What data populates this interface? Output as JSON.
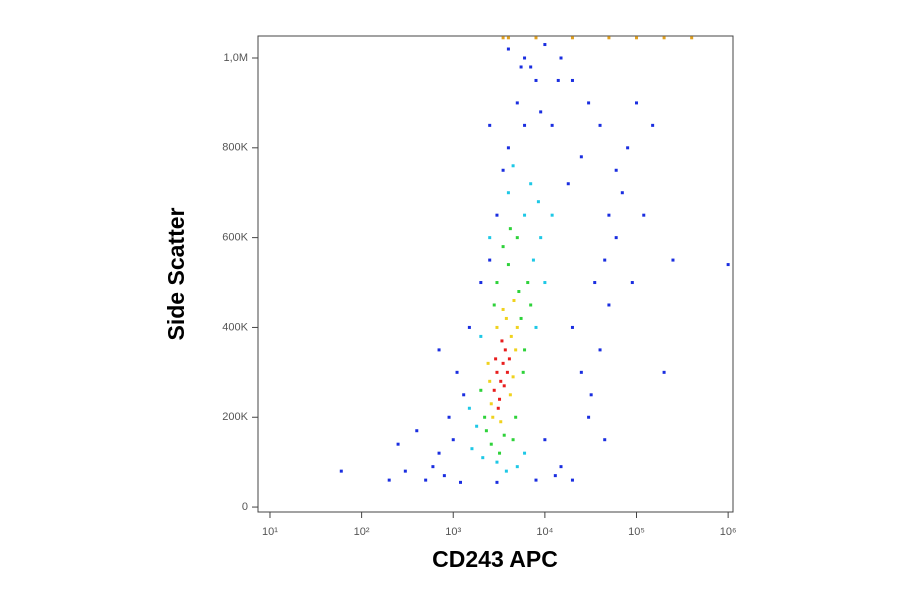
{
  "chart_data": {
    "type": "scatter",
    "x_label": "CD243 APC",
    "y_label": "Side Scatter",
    "xscale": "log",
    "xlim": [
      7.4,
      1130000
    ],
    "xticks": [
      {
        "value": 10,
        "label": "10¹"
      },
      {
        "value": 100,
        "label": "10²"
      },
      {
        "value": 1000,
        "label": "10³"
      },
      {
        "value": 10000,
        "label": "10⁴"
      },
      {
        "value": 100000,
        "label": "10⁵"
      },
      {
        "value": 1000000,
        "label": "10⁶"
      }
    ],
    "ylim": [
      -11000,
      1049000
    ],
    "yticks": [
      0,
      {
        "value": 200000,
        "label": "200K"
      },
      {
        "value": 400000,
        "label": "400K"
      },
      {
        "value": 600000,
        "label": "600K"
      },
      {
        "value": 800000,
        "label": "800K"
      },
      {
        "value": 1000000,
        "label": "1,0M"
      }
    ],
    "series": [
      {
        "color": "#1a2ee0",
        "x": [
          500,
          800,
          1200,
          300,
          20000,
          15000,
          1000,
          700,
          10000,
          30000,
          1300,
          25000,
          1100,
          40000,
          1500,
          20000,
          50000,
          2000,
          35000,
          2500,
          45000,
          60000,
          3000,
          50000,
          70000,
          3500,
          60000,
          4000,
          80000,
          6000,
          40000,
          5000,
          30000,
          8000,
          20000,
          6000,
          15000,
          12000,
          25000,
          9000,
          18000,
          14000,
          2500,
          5500,
          100000,
          150000,
          200000,
          250000,
          60,
          400,
          250,
          200,
          8000,
          3000,
          13000,
          600,
          700,
          900,
          32000,
          45000,
          1000000,
          90000,
          120000,
          7000,
          4000,
          10000
        ],
        "y": [
          60000,
          70000,
          55000,
          80000,
          60000,
          90000,
          150000,
          120000,
          150000,
          200000,
          250000,
          300000,
          300000,
          350000,
          400000,
          400000,
          450000,
          500000,
          500000,
          550000,
          550000,
          600000,
          650000,
          650000,
          700000,
          750000,
          750000,
          800000,
          800000,
          850000,
          850000,
          900000,
          900000,
          950000,
          950000,
          1000000,
          1000000,
          850000,
          780000,
          880000,
          720000,
          950000,
          850000,
          980000,
          900000,
          850000,
          300000,
          550000,
          80000,
          170000,
          140000,
          60000,
          60000,
          55000,
          70000,
          90000,
          350000,
          200000,
          250000,
          150000,
          540000,
          500000,
          650000,
          980000,
          1020000,
          1030000
        ]
      },
      {
        "color": "#1ec8e6",
        "x": [
          1800,
          7500,
          2500,
          8000,
          1600,
          6000,
          3000,
          9000,
          4000,
          2100,
          5000,
          7000,
          1500,
          10000,
          3800,
          8500,
          2000,
          12000,
          6000,
          4500
        ],
        "y": [
          180000,
          550000,
          600000,
          400000,
          130000,
          650000,
          100000,
          600000,
          700000,
          110000,
          90000,
          720000,
          220000,
          500000,
          80000,
          680000,
          380000,
          650000,
          120000,
          760000
        ]
      },
      {
        "color": "#2ed23a",
        "x": [
          2200,
          5500,
          3000,
          4000,
          6000,
          2300,
          5200,
          2000,
          3600,
          4800,
          6500,
          3500,
          2600,
          5000,
          4500,
          7000,
          2800,
          3200,
          5800,
          4200
        ],
        "y": [
          200000,
          420000,
          500000,
          540000,
          350000,
          170000,
          480000,
          260000,
          160000,
          200000,
          500000,
          580000,
          140000,
          600000,
          150000,
          450000,
          450000,
          120000,
          300000,
          620000
        ]
      },
      {
        "color": "#f0d21e",
        "x": [
          2600,
          4300,
          3000,
          4500,
          2500,
          3800,
          4800,
          2700,
          3500,
          4200,
          5000,
          3300,
          2400,
          4600
        ],
        "y": [
          230000,
          380000,
          400000,
          290000,
          280000,
          420000,
          350000,
          200000,
          440000,
          250000,
          400000,
          190000,
          320000,
          460000
        ]
      },
      {
        "color": "#e0a020",
        "x": [
          4000,
          8000,
          20000,
          50000,
          100000,
          200000,
          3500,
          400000
        ],
        "y": [
          1045000,
          1045000,
          1045000,
          1045000,
          1045000,
          1045000,
          1045000,
          1045000
        ]
      },
      {
        "color": "#e81e1e",
        "x": [
          3000,
          3300,
          3500,
          2800,
          3700,
          3200,
          3900,
          2900,
          3400,
          3100,
          3600,
          4100
        ],
        "y": [
          300000,
          280000,
          320000,
          260000,
          350000,
          240000,
          300000,
          330000,
          370000,
          220000,
          270000,
          330000
        ]
      }
    ]
  }
}
